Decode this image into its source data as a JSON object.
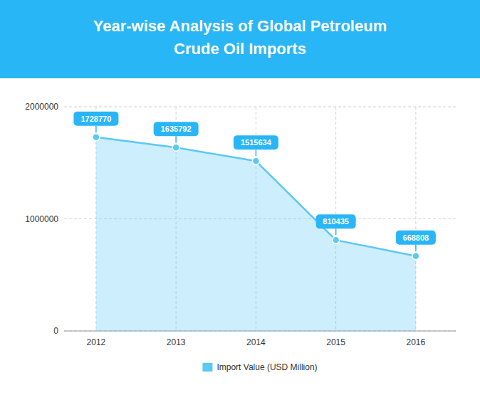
{
  "chart_data": {
    "type": "line",
    "title": "Year-wise Analysis of Global Petroleum",
    "subtitle": "Crude Oil Imports",
    "x": [
      2012,
      2013,
      2014,
      2015,
      2016
    ],
    "series": [
      {
        "name": "Import Value (USD Million)",
        "color": "#5bc8f5",
        "values": [
          1728770,
          1635792,
          1515634,
          810435,
          668808
        ]
      }
    ],
    "xlim": [
      2011.6,
      2016.5
    ],
    "xticks": [
      2012,
      2013,
      2014,
      2015,
      2016
    ],
    "ylim": [
      0,
      2000000
    ],
    "yticks": [
      0,
      1000000,
      2000000
    ],
    "grid": true,
    "legend": "bottom",
    "data_labels": true
  }
}
